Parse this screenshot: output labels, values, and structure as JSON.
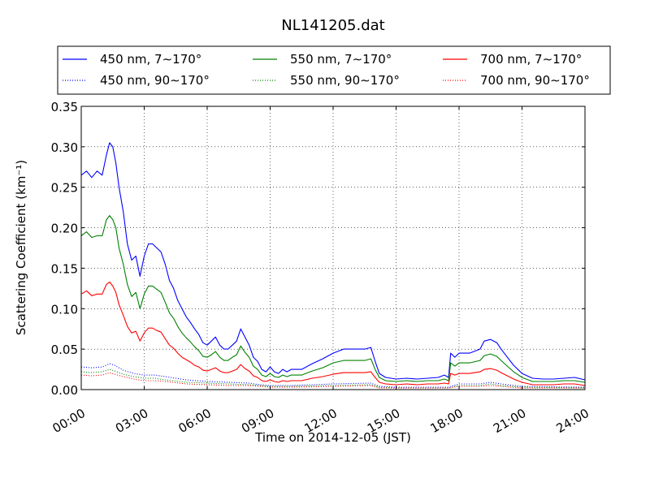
{
  "chart_data": {
    "type": "line",
    "title": "NL141205.dat",
    "xlabel": "Time on 2014-12-05 (JST)",
    "ylabel": "Scattering Coefficient (km⁻¹)",
    "xlim": [
      0,
      24
    ],
    "ylim": [
      0,
      0.35
    ],
    "x_ticks": [
      0,
      3,
      6,
      9,
      12,
      15,
      18,
      21,
      24
    ],
    "x_tick_labels": [
      "00:00",
      "03:00",
      "06:00",
      "09:00",
      "12:00",
      "15:00",
      "18:00",
      "21:00",
      "24:00"
    ],
    "y_ticks": [
      0,
      0.05,
      0.1,
      0.15,
      0.2,
      0.25,
      0.3,
      0.35
    ],
    "y_tick_labels": [
      "0.00",
      "0.05",
      "0.10",
      "0.15",
      "0.20",
      "0.25",
      "0.30",
      "0.35"
    ],
    "grid": true,
    "legend_position": "top, above plot, 3 columns",
    "x_unit": "hours since 00:00 JST",
    "series": [
      {
        "name": "450 nm, 7∼170°",
        "color": "#0000ff",
        "style": "solid",
        "x": [
          0.0,
          0.25,
          0.5,
          0.75,
          1.0,
          1.2,
          1.35,
          1.5,
          1.65,
          1.8,
          2.0,
          2.2,
          2.4,
          2.6,
          2.8,
          3.0,
          3.2,
          3.4,
          3.6,
          3.8,
          4.0,
          4.2,
          4.4,
          4.6,
          4.8,
          5.0,
          5.2,
          5.4,
          5.6,
          5.8,
          6.0,
          6.2,
          6.4,
          6.6,
          6.8,
          7.0,
          7.2,
          7.4,
          7.6,
          7.8,
          8.0,
          8.2,
          8.4,
          8.6,
          8.8,
          9.0,
          9.2,
          9.4,
          9.6,
          9.8,
          10.0,
          10.5,
          11.0,
          11.5,
          12.0,
          12.5,
          13.0,
          13.5,
          13.8,
          14.0,
          14.2,
          14.5,
          15.0,
          15.5,
          16.0,
          16.5,
          17.0,
          17.3,
          17.5,
          17.6,
          17.8,
          18.0,
          18.5,
          19.0,
          19.2,
          19.5,
          19.8,
          20.0,
          20.3,
          20.6,
          21.0,
          21.5,
          22.0,
          22.5,
          23.0,
          23.5,
          24.0
        ],
        "y": [
          0.265,
          0.27,
          0.262,
          0.27,
          0.265,
          0.29,
          0.305,
          0.3,
          0.28,
          0.25,
          0.22,
          0.18,
          0.16,
          0.165,
          0.14,
          0.165,
          0.18,
          0.18,
          0.175,
          0.17,
          0.155,
          0.135,
          0.125,
          0.11,
          0.1,
          0.09,
          0.083,
          0.075,
          0.068,
          0.058,
          0.055,
          0.06,
          0.065,
          0.055,
          0.05,
          0.05,
          0.055,
          0.06,
          0.075,
          0.065,
          0.055,
          0.04,
          0.035,
          0.025,
          0.022,
          0.028,
          0.022,
          0.02,
          0.025,
          0.022,
          0.025,
          0.025,
          0.032,
          0.038,
          0.045,
          0.05,
          0.05,
          0.05,
          0.052,
          0.035,
          0.02,
          0.015,
          0.013,
          0.014,
          0.013,
          0.014,
          0.015,
          0.018,
          0.015,
          0.045,
          0.04,
          0.045,
          0.045,
          0.05,
          0.06,
          0.062,
          0.058,
          0.05,
          0.04,
          0.03,
          0.02,
          0.014,
          0.013,
          0.013,
          0.014,
          0.015,
          0.012
        ]
      },
      {
        "name": "550 nm, 7∼170°",
        "color": "#008000",
        "style": "solid",
        "x": [
          0.0,
          0.25,
          0.5,
          0.75,
          1.0,
          1.2,
          1.35,
          1.5,
          1.65,
          1.8,
          2.0,
          2.2,
          2.4,
          2.6,
          2.8,
          3.0,
          3.2,
          3.4,
          3.6,
          3.8,
          4.0,
          4.2,
          4.4,
          4.6,
          4.8,
          5.0,
          5.2,
          5.4,
          5.6,
          5.8,
          6.0,
          6.2,
          6.4,
          6.6,
          6.8,
          7.0,
          7.2,
          7.4,
          7.6,
          7.8,
          8.0,
          8.2,
          8.4,
          8.6,
          8.8,
          9.0,
          9.2,
          9.4,
          9.6,
          9.8,
          10.0,
          10.5,
          11.0,
          11.5,
          12.0,
          12.5,
          13.0,
          13.5,
          13.8,
          14.0,
          14.2,
          14.5,
          15.0,
          15.5,
          16.0,
          16.5,
          17.0,
          17.3,
          17.5,
          17.6,
          17.8,
          18.0,
          18.5,
          19.0,
          19.2,
          19.5,
          19.8,
          20.0,
          20.3,
          20.6,
          21.0,
          21.5,
          22.0,
          22.5,
          23.0,
          23.5,
          24.0
        ],
        "y": [
          0.19,
          0.195,
          0.188,
          0.19,
          0.19,
          0.21,
          0.215,
          0.21,
          0.2,
          0.175,
          0.155,
          0.13,
          0.115,
          0.12,
          0.1,
          0.118,
          0.128,
          0.128,
          0.124,
          0.12,
          0.108,
          0.095,
          0.088,
          0.078,
          0.07,
          0.064,
          0.059,
          0.053,
          0.048,
          0.041,
          0.04,
          0.043,
          0.047,
          0.04,
          0.036,
          0.036,
          0.04,
          0.043,
          0.054,
          0.046,
          0.04,
          0.029,
          0.025,
          0.018,
          0.016,
          0.02,
          0.016,
          0.015,
          0.018,
          0.016,
          0.018,
          0.018,
          0.023,
          0.027,
          0.033,
          0.036,
          0.036,
          0.036,
          0.038,
          0.025,
          0.015,
          0.011,
          0.01,
          0.011,
          0.01,
          0.011,
          0.011,
          0.013,
          0.011,
          0.033,
          0.029,
          0.033,
          0.033,
          0.036,
          0.042,
          0.044,
          0.041,
          0.036,
          0.029,
          0.022,
          0.015,
          0.01,
          0.01,
          0.01,
          0.011,
          0.011,
          0.009
        ]
      },
      {
        "name": "700 nm, 7∼170°",
        "color": "#ff0000",
        "style": "solid",
        "x": [
          0.0,
          0.25,
          0.5,
          0.75,
          1.0,
          1.2,
          1.35,
          1.5,
          1.65,
          1.8,
          2.0,
          2.2,
          2.4,
          2.6,
          2.8,
          3.0,
          3.2,
          3.4,
          3.6,
          3.8,
          4.0,
          4.2,
          4.4,
          4.6,
          4.8,
          5.0,
          5.2,
          5.4,
          5.6,
          5.8,
          6.0,
          6.2,
          6.4,
          6.6,
          6.8,
          7.0,
          7.2,
          7.4,
          7.6,
          7.8,
          8.0,
          8.2,
          8.4,
          8.6,
          8.8,
          9.0,
          9.2,
          9.4,
          9.6,
          9.8,
          10.0,
          10.5,
          11.0,
          11.5,
          12.0,
          12.5,
          13.0,
          13.5,
          13.8,
          14.0,
          14.2,
          14.5,
          15.0,
          15.5,
          16.0,
          16.5,
          17.0,
          17.3,
          17.5,
          17.6,
          17.8,
          18.0,
          18.5,
          19.0,
          19.2,
          19.5,
          19.8,
          20.0,
          20.3,
          20.6,
          21.0,
          21.5,
          22.0,
          22.5,
          23.0,
          23.5,
          24.0
        ],
        "y": [
          0.118,
          0.122,
          0.116,
          0.118,
          0.118,
          0.13,
          0.133,
          0.128,
          0.12,
          0.105,
          0.092,
          0.078,
          0.07,
          0.072,
          0.06,
          0.07,
          0.076,
          0.076,
          0.073,
          0.071,
          0.063,
          0.055,
          0.051,
          0.045,
          0.04,
          0.037,
          0.034,
          0.03,
          0.028,
          0.024,
          0.023,
          0.025,
          0.027,
          0.023,
          0.021,
          0.021,
          0.023,
          0.025,
          0.031,
          0.026,
          0.023,
          0.017,
          0.015,
          0.011,
          0.01,
          0.012,
          0.01,
          0.009,
          0.011,
          0.01,
          0.011,
          0.011,
          0.014,
          0.016,
          0.019,
          0.021,
          0.021,
          0.021,
          0.022,
          0.015,
          0.009,
          0.007,
          0.006,
          0.007,
          0.006,
          0.007,
          0.007,
          0.008,
          0.007,
          0.02,
          0.018,
          0.02,
          0.02,
          0.022,
          0.025,
          0.026,
          0.024,
          0.021,
          0.017,
          0.013,
          0.009,
          0.006,
          0.006,
          0.006,
          0.007,
          0.007,
          0.005
        ]
      },
      {
        "name": "450 nm, 90∼170°",
        "color": "#0000ff",
        "style": "dotted",
        "x": [
          0.0,
          0.5,
          1.0,
          1.35,
          1.6,
          2.0,
          2.5,
          3.0,
          3.5,
          4.0,
          5.0,
          6.0,
          7.0,
          8.0,
          8.5,
          9.0,
          10.0,
          12.0,
          13.8,
          14.2,
          15.0,
          17.0,
          17.5,
          18.0,
          19.0,
          19.5,
          20.0,
          21.0,
          24.0
        ],
        "y": [
          0.028,
          0.027,
          0.028,
          0.032,
          0.03,
          0.024,
          0.02,
          0.018,
          0.018,
          0.016,
          0.012,
          0.01,
          0.009,
          0.008,
          0.006,
          0.005,
          0.005,
          0.007,
          0.008,
          0.004,
          0.003,
          0.003,
          0.003,
          0.007,
          0.007,
          0.009,
          0.007,
          0.004,
          0.003
        ]
      },
      {
        "name": "550 nm, 90∼170°",
        "color": "#008000",
        "style": "dotted",
        "x": [
          0.0,
          0.5,
          1.0,
          1.35,
          1.6,
          2.0,
          2.5,
          3.0,
          3.5,
          4.0,
          5.0,
          6.0,
          7.0,
          8.0,
          8.5,
          9.0,
          10.0,
          12.0,
          13.8,
          14.2,
          15.0,
          17.0,
          17.5,
          18.0,
          19.0,
          19.5,
          20.0,
          21.0,
          24.0
        ],
        "y": [
          0.022,
          0.021,
          0.022,
          0.025,
          0.023,
          0.019,
          0.016,
          0.014,
          0.014,
          0.012,
          0.009,
          0.008,
          0.007,
          0.006,
          0.005,
          0.004,
          0.004,
          0.005,
          0.006,
          0.003,
          0.002,
          0.002,
          0.002,
          0.005,
          0.005,
          0.007,
          0.005,
          0.003,
          0.002
        ]
      },
      {
        "name": "700 nm, 90∼170°",
        "color": "#ff0000",
        "style": "dotted",
        "x": [
          0.0,
          0.5,
          1.0,
          1.35,
          1.6,
          2.0,
          2.5,
          3.0,
          3.5,
          4.0,
          5.0,
          6.0,
          7.0,
          8.0,
          8.5,
          9.0,
          10.0,
          12.0,
          13.8,
          14.2,
          15.0,
          17.0,
          17.5,
          18.0,
          19.0,
          19.5,
          20.0,
          21.0,
          24.0
        ],
        "y": [
          0.018,
          0.017,
          0.018,
          0.021,
          0.019,
          0.016,
          0.013,
          0.011,
          0.011,
          0.01,
          0.007,
          0.006,
          0.005,
          0.005,
          0.004,
          0.003,
          0.003,
          0.004,
          0.005,
          0.002,
          0.002,
          0.002,
          0.002,
          0.004,
          0.004,
          0.005,
          0.004,
          0.002,
          0.002
        ]
      }
    ]
  }
}
